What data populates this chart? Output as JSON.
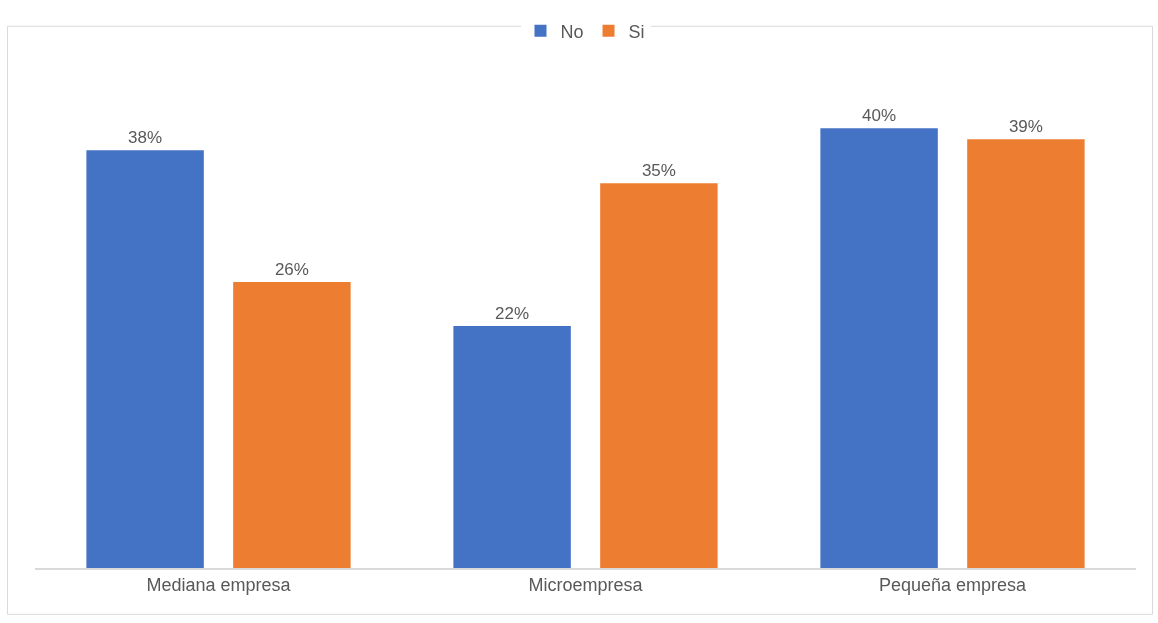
{
  "chart_data": {
    "type": "bar",
    "categories": [
      "Mediana empresa",
      "Microempresa",
      "Pequeña empresa"
    ],
    "series": [
      {
        "name": "No",
        "color": "#4472c4",
        "values": [
          38,
          22,
          40
        ],
        "value_labels": [
          "38%",
          "22%",
          "40%"
        ]
      },
      {
        "name": "Si",
        "color": "#ed7d31",
        "values": [
          26,
          35,
          39
        ],
        "value_labels": [
          "26%",
          "35%",
          "39%"
        ]
      }
    ],
    "tick_labels": "x",
    "legend": "top"
  }
}
